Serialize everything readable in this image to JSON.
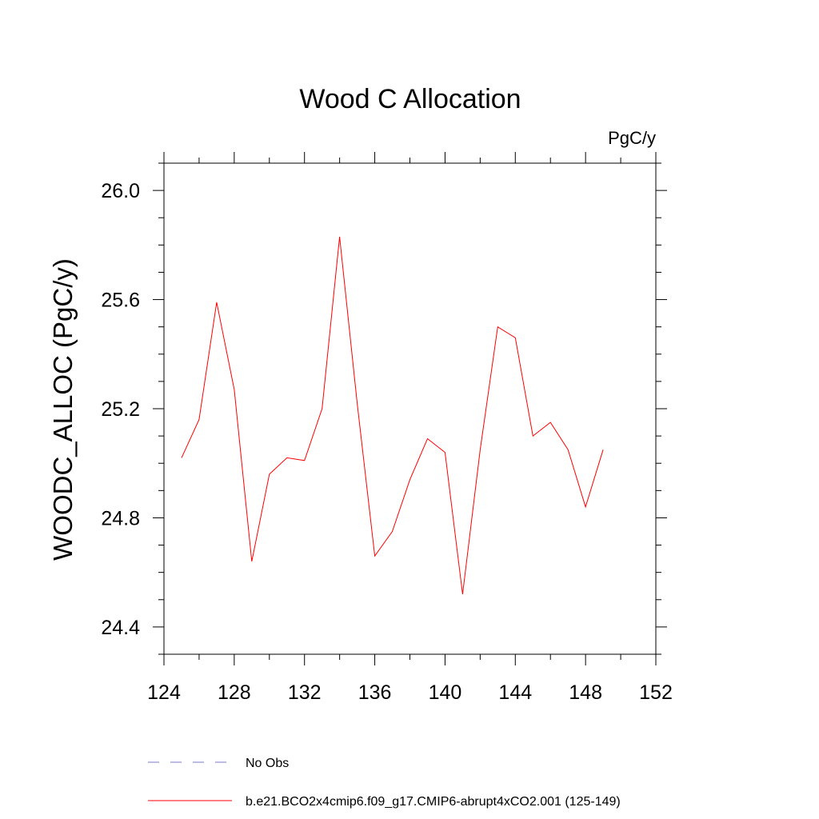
{
  "chart_data": {
    "type": "line",
    "title": "Wood C Allocation",
    "units_label": "PgC/y",
    "ylabel": "WOODC_ALLOC  (PgC/y)",
    "xlabel": "",
    "xlim": [
      124,
      152
    ],
    "ylim": [
      24.3,
      26.1
    ],
    "x_ticks": [
      124,
      128,
      132,
      136,
      140,
      144,
      148,
      152
    ],
    "x_tick_labels": [
      "124",
      "128",
      "132",
      "136",
      "140",
      "144",
      "148",
      "152"
    ],
    "y_ticks": [
      24.4,
      24.8,
      25.2,
      25.6,
      26.0
    ],
    "y_tick_labels": [
      "24.4",
      "24.8",
      "25.2",
      "25.6",
      "26.0"
    ],
    "grid": false,
    "legend_position": "bottom",
    "series": [
      {
        "name": "b.e21.BCO2x4cmip6.f09_g17.CMIP6-abrupt4xCO2.001 (125-149)",
        "color": "#ff0000",
        "dash": "solid",
        "x": [
          125,
          126,
          127,
          128,
          129,
          130,
          131,
          132,
          133,
          134,
          135,
          136,
          137,
          138,
          139,
          140,
          141,
          142,
          143,
          144,
          145,
          146,
          147,
          148,
          149
        ],
        "values": [
          25.02,
          25.16,
          25.59,
          25.27,
          24.64,
          24.96,
          25.02,
          25.01,
          25.2,
          25.83,
          25.22,
          24.66,
          24.75,
          24.94,
          25.09,
          25.04,
          24.52,
          25.05,
          25.5,
          25.46,
          25.1,
          25.15,
          25.05,
          24.84,
          25.05
        ]
      }
    ],
    "legend": [
      {
        "label": "No Obs",
        "color": "#7777cc",
        "dash": "dashed"
      },
      {
        "label": "b.e21.BCO2x4cmip6.f09_g17.CMIP6-abrupt4xCO2.001 (125-149)",
        "color": "#ff0000",
        "dash": "solid"
      }
    ]
  }
}
